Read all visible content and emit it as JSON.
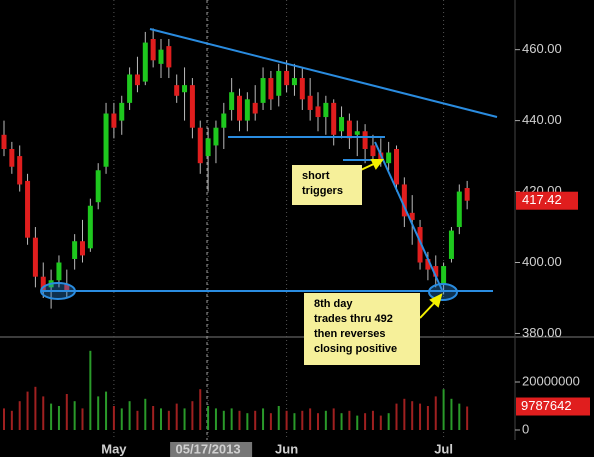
{
  "chart_data": [
    {
      "type": "candlestick",
      "categories": [
        null,
        null,
        null,
        null,
        null,
        null,
        null,
        null,
        null,
        null,
        null,
        null,
        null,
        null,
        "May",
        null,
        null,
        null,
        null,
        null,
        null,
        null,
        null,
        null,
        null,
        null,
        "05/17/2013",
        null,
        null,
        null,
        null,
        null,
        null,
        null,
        null,
        null,
        "Jun",
        null,
        null,
        null,
        null,
        null,
        null,
        null,
        null,
        null,
        null,
        null,
        null,
        null,
        null,
        null,
        null,
        null,
        null,
        null,
        "Jul",
        null,
        null,
        null
      ],
      "open": [
        436,
        432,
        430,
        423,
        407,
        396,
        393,
        395,
        394,
        401,
        406,
        404,
        417,
        427,
        442,
        440,
        445,
        453,
        451,
        463,
        456,
        461,
        450,
        448,
        450,
        438,
        430,
        433,
        438,
        443,
        447,
        440,
        445,
        445,
        452,
        447,
        454,
        450,
        452,
        447,
        444,
        441,
        445,
        437,
        440,
        436,
        437,
        433,
        431,
        428,
        432,
        422,
        414,
        410,
        401,
        399,
        394,
        401,
        410,
        421
      ],
      "high": [
        440,
        434,
        433,
        425,
        410,
        400,
        398,
        402,
        398,
        408,
        412,
        418,
        428,
        445,
        445,
        447,
        455,
        458,
        465,
        466,
        463,
        463,
        453,
        455,
        452,
        440,
        438,
        440,
        445,
        452,
        449,
        448,
        450,
        455,
        454,
        456,
        457,
        456,
        455,
        452,
        448,
        447,
        446,
        444,
        442,
        440,
        439,
        436,
        435,
        434,
        433,
        424,
        419,
        412,
        403,
        402,
        400,
        410,
        422,
        423
      ],
      "low": [
        430,
        425,
        420,
        405,
        393,
        390,
        387,
        393,
        390,
        398,
        400,
        403,
        415,
        425,
        435,
        436,
        443,
        448,
        450,
        455,
        452,
        452,
        445,
        440,
        435,
        425,
        420,
        428,
        432,
        440,
        437,
        437,
        440,
        443,
        443,
        444,
        448,
        447,
        443,
        440,
        437,
        436,
        433,
        435,
        432,
        430,
        428,
        428,
        427,
        426,
        420,
        410,
        405,
        398,
        395,
        393,
        391,
        400,
        408,
        415
      ],
      "close": [
        432,
        427,
        422,
        407,
        396,
        392,
        395,
        400,
        392,
        406,
        402,
        416,
        426,
        442,
        438,
        445,
        453,
        450,
        462,
        457,
        460,
        455,
        447,
        450,
        438,
        428,
        435,
        438,
        442,
        448,
        440,
        446,
        442,
        452,
        446,
        454,
        450,
        452,
        446,
        443,
        441,
        445,
        436,
        441,
        435,
        437,
        432,
        430,
        429,
        431,
        422,
        413,
        412,
        400,
        398,
        396,
        399,
        409,
        420,
        417.42
      ],
      "up_color": "#1ec81e",
      "down_color": "#e01e1e",
      "ylim": [
        379,
        474
      ],
      "yticks": [
        {
          "value": 460,
          "label": "460.00"
        },
        {
          "value": 440,
          "label": "440.00"
        },
        {
          "value": 420,
          "label": "420.00"
        },
        {
          "value": 400,
          "label": "400.00"
        },
        {
          "value": 380,
          "label": "380.00"
        }
      ],
      "annotations": [
        {
          "lines": [
            "short",
            "triggers"
          ]
        },
        {
          "lines": [
            "8th day",
            "trades thru 492",
            "then reverses",
            "closing positive"
          ]
        }
      ]
    },
    {
      "type": "volume",
      "values": [
        9000000,
        8000000,
        12000000,
        16000000,
        18000000,
        14000000,
        11000000,
        10000000,
        15000000,
        12000000,
        9000000,
        33000000,
        14000000,
        16000000,
        10000000,
        9000000,
        12000000,
        8000000,
        13000000,
        10000000,
        9000000,
        8000000,
        11000000,
        9000000,
        12000000,
        17000000,
        10000000,
        9000000,
        8000000,
        9000000,
        8000000,
        7000000,
        8000000,
        9000000,
        7000000,
        10000000,
        8000000,
        7000000,
        8000000,
        9000000,
        7000000,
        8000000,
        9000000,
        7000000,
        8000000,
        6000000,
        7000000,
        8000000,
        6000000,
        7000000,
        11000000,
        13000000,
        12000000,
        11000000,
        10000000,
        14000000,
        17000000,
        13000000,
        11000000,
        9787642
      ],
      "ylim": [
        0,
        37500000
      ],
      "yticks": [
        20000000,
        0
      ]
    }
  ]
}
